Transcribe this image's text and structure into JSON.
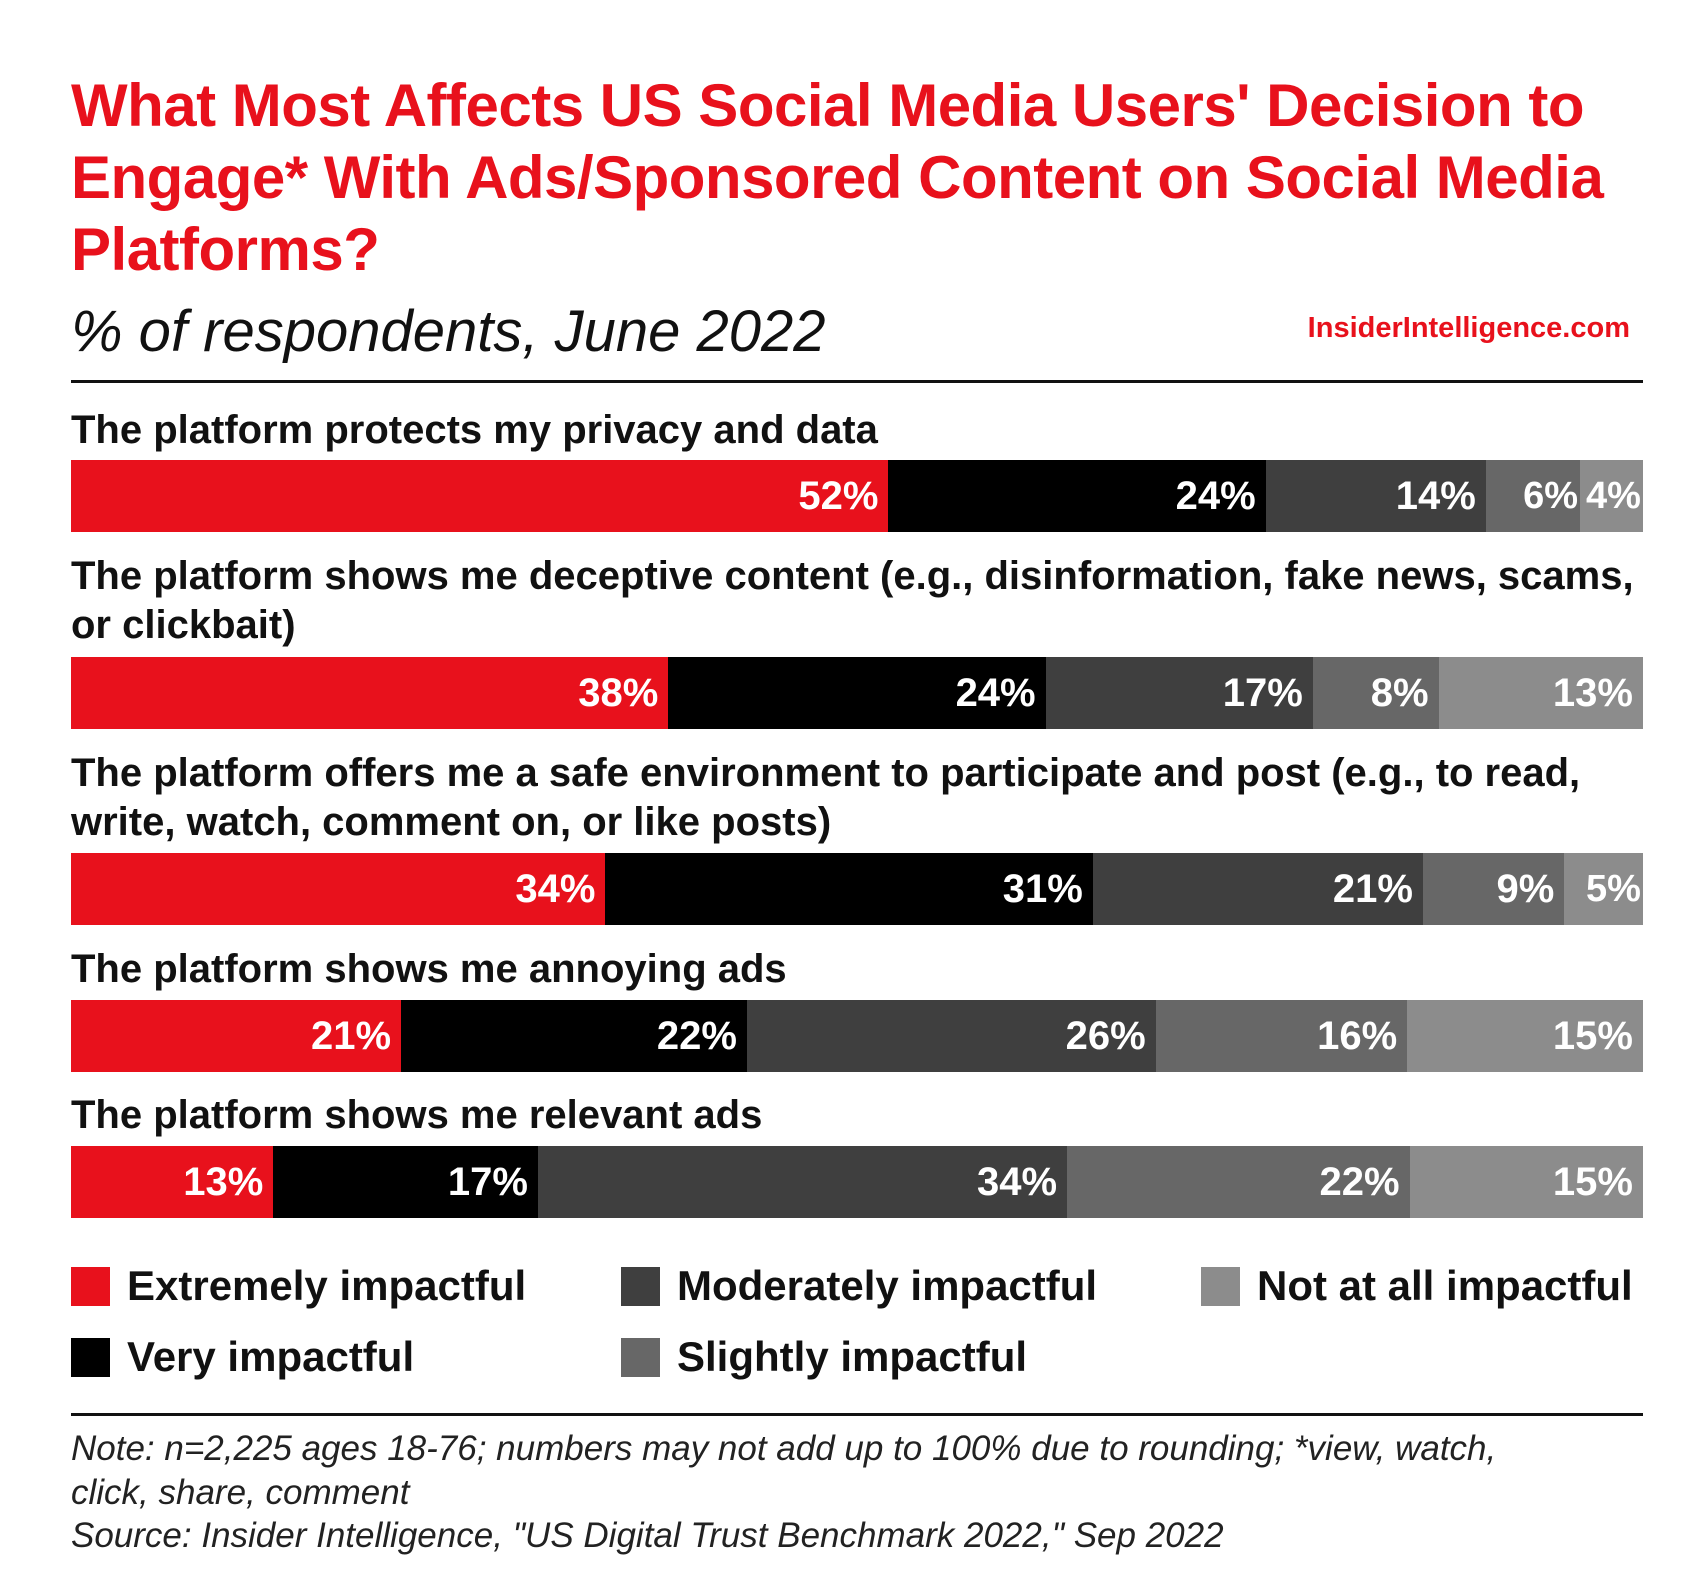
{
  "chart_data": {
    "type": "bar",
    "orientation": "horizontal",
    "stacked": true,
    "title": "What Most Affects US Social Media Users' Decision to Engage* With Ads/Sponsored Content on Social Media Platforms?",
    "subtitle": "% of respondents, June 2022",
    "source_brand": "InsiderIntelligence.com",
    "categories": [
      "The platform protects my privacy and data",
      "The platform shows me deceptive content (e.g., disinformation, fake news, scams, or clickbait)",
      "The platform offers me a safe environment to participate and post (e.g., to read, write, watch, comment on, or like posts)",
      "The platform shows me annoying ads",
      "The platform shows me relevant ads"
    ],
    "series": [
      {
        "name": "Extremely impactful",
        "color": "#e8111c",
        "values": [
          52,
          38,
          34,
          21,
          13
        ]
      },
      {
        "name": "Very impactful",
        "color": "#000000",
        "values": [
          24,
          24,
          31,
          22,
          17
        ]
      },
      {
        "name": "Moderately impactful",
        "color": "#3f3f3f",
        "values": [
          14,
          17,
          21,
          26,
          34
        ]
      },
      {
        "name": "Slightly impactful",
        "color": "#676767",
        "values": [
          6,
          8,
          9,
          16,
          22
        ]
      },
      {
        "name": "Not at all impactful",
        "color": "#8c8c8c",
        "values": [
          4,
          13,
          5,
          15,
          15
        ]
      }
    ],
    "unit": "%",
    "legend_position": "bottom",
    "grid": false
  },
  "notes": {
    "note_line1": "Note: n=2,225 ages 18-76; numbers may not add up to 100% due to rounding; *view, watch,",
    "note_line2": "click, share, comment",
    "source": "Source: Insider Intelligence, \"US Digital Trust Benchmark 2022,\" Sep 2022"
  }
}
